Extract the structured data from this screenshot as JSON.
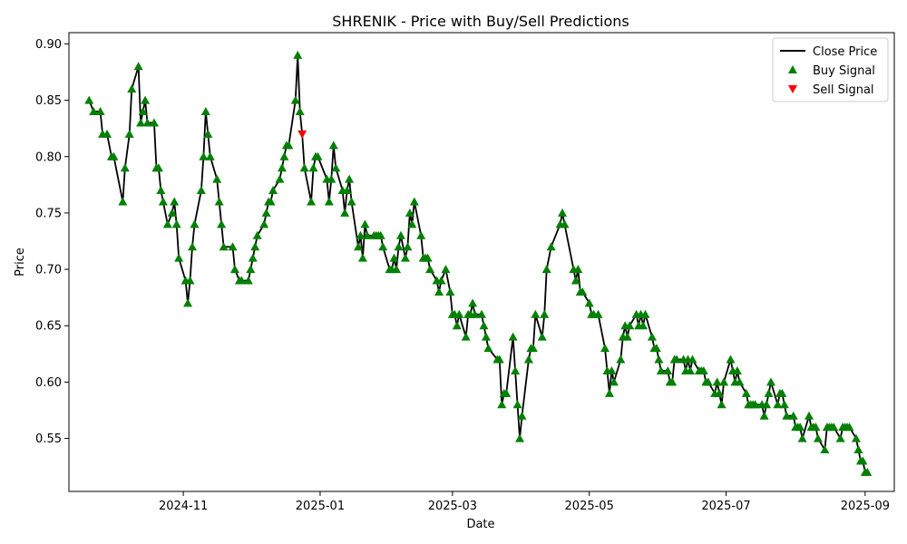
{
  "chart_data": {
    "type": "line",
    "title": "SHRENIK - Price with Buy/Sell Predictions",
    "xlabel": "Date",
    "ylabel": "Price",
    "x_range": [
      "2024-09-11",
      "2025-09-14"
    ],
    "ylim": [
      0.503,
      0.91
    ],
    "x_ticks": [
      {
        "date": "2024-11-01",
        "label": "2024-11"
      },
      {
        "date": "2025-01-01",
        "label": "2025-01"
      },
      {
        "date": "2025-03-01",
        "label": "2025-03"
      },
      {
        "date": "2025-05-01",
        "label": "2025-05"
      },
      {
        "date": "2025-07-01",
        "label": "2025-07"
      },
      {
        "date": "2025-09-01",
        "label": "2025-09"
      }
    ],
    "y_ticks": [
      0.55,
      0.6,
      0.65,
      0.7,
      0.75,
      0.8,
      0.85,
      0.9
    ],
    "y_tick_labels": [
      "0.55",
      "0.60",
      "0.65",
      "0.70",
      "0.75",
      "0.80",
      "0.85",
      "0.90"
    ],
    "grid": false,
    "legend_position": "top-right",
    "series": [
      {
        "name": "Close Price",
        "kind": "line",
        "color": "#000000"
      },
      {
        "name": "Buy Signal",
        "kind": "marker-triangle-up",
        "color": "#008000"
      },
      {
        "name": "Sell Signal",
        "kind": "marker-triangle-down",
        "color": "#ff0000"
      }
    ],
    "points": [
      [
        "2024-09-20",
        0.85,
        "buy"
      ],
      [
        "2024-09-22",
        0.84,
        "buy"
      ],
      [
        "2024-09-25",
        0.84,
        "buy"
      ],
      [
        "2024-09-26",
        0.82,
        "buy"
      ],
      [
        "2024-09-28",
        0.82,
        "buy"
      ],
      [
        "2024-09-30",
        0.8,
        "buy"
      ],
      [
        "2024-10-01",
        0.8,
        "buy"
      ],
      [
        "2024-10-05",
        0.76,
        "buy"
      ],
      [
        "2024-10-06",
        0.79,
        "buy"
      ],
      [
        "2024-10-08",
        0.82,
        "buy"
      ],
      [
        "2024-10-09",
        0.86,
        "buy"
      ],
      [
        "2024-10-12",
        0.88,
        "buy"
      ],
      [
        "2024-10-13",
        0.83,
        "buy"
      ],
      [
        "2024-10-14",
        0.84,
        "buy"
      ],
      [
        "2024-10-15",
        0.85,
        "buy"
      ],
      [
        "2024-10-16",
        0.83,
        "buy"
      ],
      [
        "2024-10-19",
        0.83,
        "buy"
      ],
      [
        "2024-10-20",
        0.79,
        "buy"
      ],
      [
        "2024-10-21",
        0.79,
        "buy"
      ],
      [
        "2024-10-22",
        0.77,
        "buy"
      ],
      [
        "2024-10-23",
        0.76,
        "buy"
      ],
      [
        "2024-10-25",
        0.74,
        "buy"
      ],
      [
        "2024-10-27",
        0.75,
        "buy"
      ],
      [
        "2024-10-28",
        0.76,
        "buy"
      ],
      [
        "2024-10-29",
        0.74,
        "buy"
      ],
      [
        "2024-10-30",
        0.71,
        "buy"
      ],
      [
        "2024-11-02",
        0.69,
        "buy"
      ],
      [
        "2024-11-03",
        0.67,
        "buy"
      ],
      [
        "2024-11-04",
        0.69,
        "buy"
      ],
      [
        "2024-11-05",
        0.72,
        "buy"
      ],
      [
        "2024-11-06",
        0.74,
        "buy"
      ],
      [
        "2024-11-09",
        0.77,
        "buy"
      ],
      [
        "2024-11-10",
        0.8,
        "buy"
      ],
      [
        "2024-11-11",
        0.84,
        "buy"
      ],
      [
        "2024-11-12",
        0.82,
        "buy"
      ],
      [
        "2024-11-13",
        0.8,
        "buy"
      ],
      [
        "2024-11-16",
        0.78,
        "buy"
      ],
      [
        "2024-11-17",
        0.76,
        "buy"
      ],
      [
        "2024-11-18",
        0.74,
        "buy"
      ],
      [
        "2024-11-19",
        0.72,
        "buy"
      ],
      [
        "2024-11-23",
        0.72,
        "buy"
      ],
      [
        "2024-11-24",
        0.7,
        "buy"
      ],
      [
        "2024-11-26",
        0.69,
        "buy"
      ],
      [
        "2024-11-27",
        0.69,
        "buy"
      ],
      [
        "2024-11-30",
        0.69,
        "buy"
      ],
      [
        "2024-12-01",
        0.7,
        "buy"
      ],
      [
        "2024-12-02",
        0.71,
        "buy"
      ],
      [
        "2024-12-03",
        0.72,
        "buy"
      ],
      [
        "2024-12-04",
        0.73,
        "buy"
      ],
      [
        "2024-12-07",
        0.74,
        "buy"
      ],
      [
        "2024-12-08",
        0.75,
        "buy"
      ],
      [
        "2024-12-09",
        0.76,
        "buy"
      ],
      [
        "2024-12-10",
        0.76,
        "buy"
      ],
      [
        "2024-12-11",
        0.77,
        "buy"
      ],
      [
        "2024-12-14",
        0.78,
        "buy"
      ],
      [
        "2024-12-15",
        0.79,
        "buy"
      ],
      [
        "2024-12-16",
        0.8,
        "buy"
      ],
      [
        "2024-12-17",
        0.81,
        "buy"
      ],
      [
        "2024-12-18",
        0.81,
        "buy"
      ],
      [
        "2024-12-21",
        0.85,
        "buy"
      ],
      [
        "2024-12-22",
        0.89,
        "buy"
      ],
      [
        "2024-12-23",
        0.84,
        "buy"
      ],
      [
        "2024-12-24",
        0.82,
        "sell"
      ],
      [
        "2024-12-25",
        0.79,
        "buy"
      ],
      [
        "2024-12-28",
        0.76,
        "buy"
      ],
      [
        "2024-12-29",
        0.79,
        "buy"
      ],
      [
        "2024-12-30",
        0.8,
        "buy"
      ],
      [
        "2024-12-31",
        0.8,
        "buy"
      ],
      [
        "2025-01-04",
        0.78,
        "buy"
      ],
      [
        "2025-01-05",
        0.76,
        "buy"
      ],
      [
        "2025-01-06",
        0.78,
        "buy"
      ],
      [
        "2025-01-07",
        0.81,
        "buy"
      ],
      [
        "2025-01-08",
        0.79,
        "buy"
      ],
      [
        "2025-01-11",
        0.77,
        "buy"
      ],
      [
        "2025-01-12",
        0.75,
        "buy"
      ],
      [
        "2025-01-13",
        0.77,
        "buy"
      ],
      [
        "2025-01-14",
        0.78,
        "buy"
      ],
      [
        "2025-01-15",
        0.76,
        "buy"
      ],
      [
        "2025-01-18",
        0.72,
        "buy"
      ],
      [
        "2025-01-19",
        0.73,
        "buy"
      ],
      [
        "2025-01-20",
        0.71,
        "buy"
      ],
      [
        "2025-01-21",
        0.74,
        "buy"
      ],
      [
        "2025-01-22",
        0.73,
        "buy"
      ],
      [
        "2025-01-25",
        0.73,
        "buy"
      ],
      [
        "2025-01-26",
        0.73,
        "buy"
      ],
      [
        "2025-01-27",
        0.73,
        "buy"
      ],
      [
        "2025-01-28",
        0.73,
        "buy"
      ],
      [
        "2025-01-29",
        0.72,
        "buy"
      ],
      [
        "2025-02-01",
        0.7,
        "buy"
      ],
      [
        "2025-02-02",
        0.7,
        "buy"
      ],
      [
        "2025-02-03",
        0.71,
        "buy"
      ],
      [
        "2025-02-04",
        0.7,
        "buy"
      ],
      [
        "2025-02-05",
        0.72,
        "buy"
      ],
      [
        "2025-02-06",
        0.73,
        "buy"
      ],
      [
        "2025-02-08",
        0.71,
        "buy"
      ],
      [
        "2025-02-09",
        0.72,
        "buy"
      ],
      [
        "2025-02-10",
        0.75,
        "buy"
      ],
      [
        "2025-02-11",
        0.74,
        "buy"
      ],
      [
        "2025-02-12",
        0.76,
        "buy"
      ],
      [
        "2025-02-15",
        0.73,
        "buy"
      ],
      [
        "2025-02-16",
        0.71,
        "buy"
      ],
      [
        "2025-02-17",
        0.71,
        "buy"
      ],
      [
        "2025-02-18",
        0.71,
        "buy"
      ],
      [
        "2025-02-19",
        0.7,
        "buy"
      ],
      [
        "2025-02-22",
        0.69,
        "buy"
      ],
      [
        "2025-02-23",
        0.68,
        "buy"
      ],
      [
        "2025-02-24",
        0.69,
        "buy"
      ],
      [
        "2025-02-26",
        0.7,
        "buy"
      ],
      [
        "2025-02-28",
        0.68,
        "buy"
      ],
      [
        "2025-03-01",
        0.66,
        "buy"
      ],
      [
        "2025-03-02",
        0.66,
        "buy"
      ],
      [
        "2025-03-03",
        0.65,
        "buy"
      ],
      [
        "2025-03-04",
        0.66,
        "buy"
      ],
      [
        "2025-03-07",
        0.64,
        "buy"
      ],
      [
        "2025-03-08",
        0.66,
        "buy"
      ],
      [
        "2025-03-09",
        0.66,
        "buy"
      ],
      [
        "2025-03-10",
        0.67,
        "buy"
      ],
      [
        "2025-03-11",
        0.66,
        "buy"
      ],
      [
        "2025-03-14",
        0.66,
        "buy"
      ],
      [
        "2025-03-15",
        0.65,
        "buy"
      ],
      [
        "2025-03-16",
        0.64,
        "buy"
      ],
      [
        "2025-03-17",
        0.63,
        "buy"
      ],
      [
        "2025-03-21",
        0.62,
        "buy"
      ],
      [
        "2025-03-22",
        0.62,
        "buy"
      ],
      [
        "2025-03-23",
        0.58,
        "buy"
      ],
      [
        "2025-03-24",
        0.59,
        "buy"
      ],
      [
        "2025-03-25",
        0.59,
        "buy"
      ],
      [
        "2025-03-28",
        0.64,
        "buy"
      ],
      [
        "2025-03-29",
        0.61,
        "buy"
      ],
      [
        "2025-03-30",
        0.58,
        "buy"
      ],
      [
        "2025-03-31",
        0.55,
        "buy"
      ],
      [
        "2025-04-01",
        0.57,
        "buy"
      ],
      [
        "2025-04-04",
        0.62,
        "buy"
      ],
      [
        "2025-04-05",
        0.63,
        "buy"
      ],
      [
        "2025-04-06",
        0.63,
        "buy"
      ],
      [
        "2025-04-07",
        0.66,
        "buy"
      ],
      [
        "2025-04-10",
        0.64,
        "buy"
      ],
      [
        "2025-04-11",
        0.66,
        "buy"
      ],
      [
        "2025-04-12",
        0.7,
        "buy"
      ],
      [
        "2025-04-14",
        0.72,
        "buy"
      ],
      [
        "2025-04-18",
        0.74,
        "buy"
      ],
      [
        "2025-04-19",
        0.75,
        "buy"
      ],
      [
        "2025-04-20",
        0.74,
        "buy"
      ],
      [
        "2025-04-24",
        0.7,
        "buy"
      ],
      [
        "2025-04-25",
        0.69,
        "buy"
      ],
      [
        "2025-04-26",
        0.7,
        "buy"
      ],
      [
        "2025-04-27",
        0.68,
        "buy"
      ],
      [
        "2025-04-28",
        0.68,
        "buy"
      ],
      [
        "2025-05-01",
        0.67,
        "buy"
      ],
      [
        "2025-05-02",
        0.66,
        "buy"
      ],
      [
        "2025-05-03",
        0.66,
        "buy"
      ],
      [
        "2025-05-05",
        0.66,
        "buy"
      ],
      [
        "2025-05-08",
        0.63,
        "buy"
      ],
      [
        "2025-05-09",
        0.61,
        "buy"
      ],
      [
        "2025-05-10",
        0.59,
        "buy"
      ],
      [
        "2025-05-11",
        0.61,
        "buy"
      ],
      [
        "2025-05-12",
        0.6,
        "buy"
      ],
      [
        "2025-05-15",
        0.62,
        "buy"
      ],
      [
        "2025-05-16",
        0.64,
        "buy"
      ],
      [
        "2025-05-17",
        0.65,
        "buy"
      ],
      [
        "2025-05-18",
        0.64,
        "buy"
      ],
      [
        "2025-05-19",
        0.65,
        "buy"
      ],
      [
        "2025-05-22",
        0.66,
        "buy"
      ],
      [
        "2025-05-23",
        0.65,
        "buy"
      ],
      [
        "2025-05-24",
        0.66,
        "buy"
      ],
      [
        "2025-05-25",
        0.65,
        "buy"
      ],
      [
        "2025-05-26",
        0.66,
        "buy"
      ],
      [
        "2025-05-29",
        0.64,
        "buy"
      ],
      [
        "2025-05-30",
        0.63,
        "buy"
      ],
      [
        "2025-05-31",
        0.63,
        "buy"
      ],
      [
        "2025-06-01",
        0.62,
        "buy"
      ],
      [
        "2025-06-02",
        0.61,
        "buy"
      ],
      [
        "2025-06-05",
        0.61,
        "buy"
      ],
      [
        "2025-06-06",
        0.6,
        "buy"
      ],
      [
        "2025-06-07",
        0.6,
        "buy"
      ],
      [
        "2025-06-08",
        0.62,
        "buy"
      ],
      [
        "2025-06-09",
        0.62,
        "buy"
      ],
      [
        "2025-06-12",
        0.62,
        "buy"
      ],
      [
        "2025-06-13",
        0.61,
        "buy"
      ],
      [
        "2025-06-14",
        0.62,
        "buy"
      ],
      [
        "2025-06-15",
        0.61,
        "buy"
      ],
      [
        "2025-06-16",
        0.62,
        "buy"
      ],
      [
        "2025-06-19",
        0.61,
        "buy"
      ],
      [
        "2025-06-20",
        0.61,
        "buy"
      ],
      [
        "2025-06-21",
        0.61,
        "buy"
      ],
      [
        "2025-06-22",
        0.6,
        "buy"
      ],
      [
        "2025-06-23",
        0.6,
        "buy"
      ],
      [
        "2025-06-26",
        0.59,
        "buy"
      ],
      [
        "2025-06-27",
        0.6,
        "buy"
      ],
      [
        "2025-06-28",
        0.59,
        "buy"
      ],
      [
        "2025-06-29",
        0.58,
        "buy"
      ],
      [
        "2025-06-30",
        0.6,
        "buy"
      ],
      [
        "2025-07-03",
        0.62,
        "buy"
      ],
      [
        "2025-07-04",
        0.61,
        "buy"
      ],
      [
        "2025-07-05",
        0.6,
        "buy"
      ],
      [
        "2025-07-06",
        0.61,
        "buy"
      ],
      [
        "2025-07-07",
        0.6,
        "buy"
      ],
      [
        "2025-07-10",
        0.59,
        "buy"
      ],
      [
        "2025-07-11",
        0.58,
        "buy"
      ],
      [
        "2025-07-12",
        0.58,
        "buy"
      ],
      [
        "2025-07-13",
        0.58,
        "buy"
      ],
      [
        "2025-07-14",
        0.58,
        "buy"
      ],
      [
        "2025-07-17",
        0.58,
        "buy"
      ],
      [
        "2025-07-18",
        0.57,
        "buy"
      ],
      [
        "2025-07-19",
        0.58,
        "buy"
      ],
      [
        "2025-07-20",
        0.59,
        "buy"
      ],
      [
        "2025-07-21",
        0.6,
        "buy"
      ],
      [
        "2025-07-24",
        0.58,
        "buy"
      ],
      [
        "2025-07-25",
        0.59,
        "buy"
      ],
      [
        "2025-07-26",
        0.59,
        "buy"
      ],
      [
        "2025-07-27",
        0.58,
        "buy"
      ],
      [
        "2025-07-28",
        0.57,
        "buy"
      ],
      [
        "2025-07-31",
        0.57,
        "buy"
      ],
      [
        "2025-08-01",
        0.56,
        "buy"
      ],
      [
        "2025-08-02",
        0.56,
        "buy"
      ],
      [
        "2025-08-03",
        0.56,
        "buy"
      ],
      [
        "2025-08-04",
        0.55,
        "buy"
      ],
      [
        "2025-08-07",
        0.57,
        "buy"
      ],
      [
        "2025-08-08",
        0.56,
        "buy"
      ],
      [
        "2025-08-09",
        0.56,
        "buy"
      ],
      [
        "2025-08-10",
        0.56,
        "buy"
      ],
      [
        "2025-08-11",
        0.55,
        "buy"
      ],
      [
        "2025-08-14",
        0.54,
        "buy"
      ],
      [
        "2025-08-15",
        0.56,
        "buy"
      ],
      [
        "2025-08-16",
        0.56,
        "buy"
      ],
      [
        "2025-08-17",
        0.56,
        "buy"
      ],
      [
        "2025-08-18",
        0.56,
        "buy"
      ],
      [
        "2025-08-21",
        0.55,
        "buy"
      ],
      [
        "2025-08-22",
        0.56,
        "buy"
      ],
      [
        "2025-08-23",
        0.56,
        "buy"
      ],
      [
        "2025-08-24",
        0.56,
        "buy"
      ],
      [
        "2025-08-25",
        0.56,
        "buy"
      ],
      [
        "2025-08-28",
        0.55,
        "buy"
      ],
      [
        "2025-08-29",
        0.54,
        "buy"
      ],
      [
        "2025-08-30",
        0.53,
        "buy"
      ],
      [
        "2025-08-31",
        0.53,
        "buy"
      ],
      [
        "2025-09-01",
        0.52,
        "buy"
      ],
      [
        "2025-09-02",
        0.52,
        "buy"
      ]
    ]
  }
}
